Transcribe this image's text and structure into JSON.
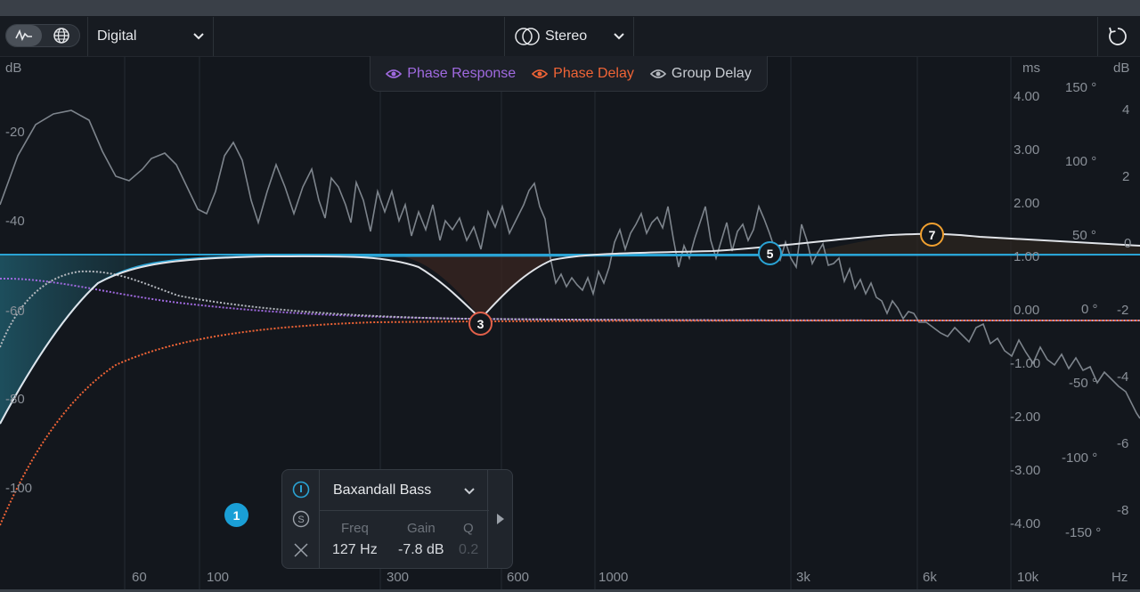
{
  "toolbar": {
    "mode_dropdown": "Digital",
    "channel_dropdown": "Stereo"
  },
  "legend": {
    "phase_response": "Phase Response",
    "phase_delay": "Phase Delay",
    "group_delay": "Group Delay"
  },
  "axes": {
    "left_unit": "dB",
    "left_ticks": [
      "-20",
      "-40",
      "-60",
      "-80",
      "-100"
    ],
    "ms_unit": "ms",
    "ms_ticks": [
      "4.00",
      "3.00",
      "2.00",
      "1.00",
      "0.00",
      "-1.00",
      "-2.00",
      "-3.00",
      "-4.00"
    ],
    "degree_ticks": [
      "150 °",
      "100 °",
      "50 °",
      "0 °",
      "-50 °",
      "-100 °",
      "-150 °"
    ],
    "right_unit": "dB",
    "right_ticks": [
      "4",
      "2",
      "0",
      "-2",
      "-4",
      "-6",
      "-8"
    ],
    "freq_ticks": [
      "60",
      "100",
      "300",
      "600",
      "1000",
      "3k",
      "6k",
      "10k"
    ],
    "freq_unit": "Hz"
  },
  "nodes": {
    "n1": "1",
    "n3": "3",
    "n5": "5",
    "n7": "7"
  },
  "band_panel": {
    "type": "Baxandall Bass",
    "freq_label": "Freq",
    "gain_label": "Gain",
    "q_label": "Q",
    "freq_value": "127 Hz",
    "gain_value": "-7.8 dB",
    "q_value": "0.2"
  },
  "colors": {
    "phase_response": "#a06ae0",
    "phase_delay": "#f06436",
    "group_delay": "#b4b8be",
    "eq_blue": "#2aa3d4",
    "node_3": "#e0604a",
    "node_5": "#2aa3d4",
    "node_7": "#f0a030"
  }
}
